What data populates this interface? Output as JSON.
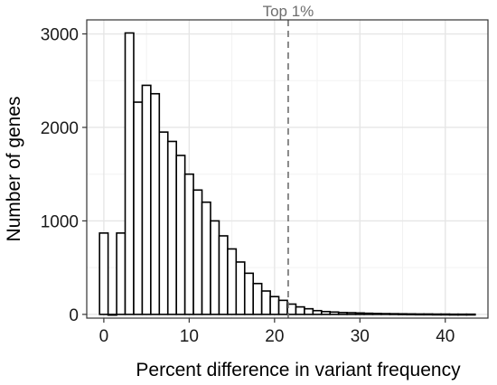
{
  "chart_data": {
    "type": "bar",
    "title": "",
    "xlabel": "Percent difference in variant frequency",
    "ylabel": "Number of genes",
    "xlim": [
      -2,
      45
    ],
    "ylim": [
      -40,
      3150
    ],
    "x_ticks": [
      0,
      10,
      20,
      30,
      40
    ],
    "y_ticks": [
      0,
      1000,
      2000,
      3000
    ],
    "x_tick_labels": [
      "0",
      "10",
      "20",
      "30",
      "40"
    ],
    "y_tick_labels": [
      "0",
      "1000",
      "2000",
      "3000"
    ],
    "grid": true,
    "legend": "none",
    "bin_width": 1,
    "bins_x": [
      0,
      1,
      2,
      3,
      4,
      5,
      6,
      7,
      8,
      9,
      10,
      11,
      12,
      13,
      14,
      15,
      16,
      17,
      18,
      19,
      20,
      21,
      22,
      23,
      24,
      25,
      26,
      27,
      28,
      29,
      30,
      31,
      32,
      33,
      34,
      35,
      36,
      37,
      38,
      39,
      40,
      41,
      42,
      43
    ],
    "values": [
      870,
      0,
      870,
      3010,
      2270,
      2450,
      2360,
      1950,
      1850,
      1700,
      1500,
      1330,
      1200,
      1000,
      840,
      700,
      560,
      440,
      330,
      250,
      190,
      150,
      110,
      80,
      60,
      40,
      30,
      25,
      20,
      18,
      15,
      12,
      10,
      8,
      7,
      6,
      5,
      4,
      4,
      3,
      3,
      2,
      2,
      2
    ],
    "annotations": [
      {
        "type": "vline",
        "x": 21.6,
        "label": "Top 1%",
        "style": "dashed"
      }
    ],
    "colors": {
      "bar_fill": "#ffffff",
      "bar_stroke": "#000000",
      "grid_major": "#e6e6e6",
      "grid_minor": "#f2f2f2",
      "panel_border": "#333333",
      "annotation": "#6e6e6e"
    }
  }
}
